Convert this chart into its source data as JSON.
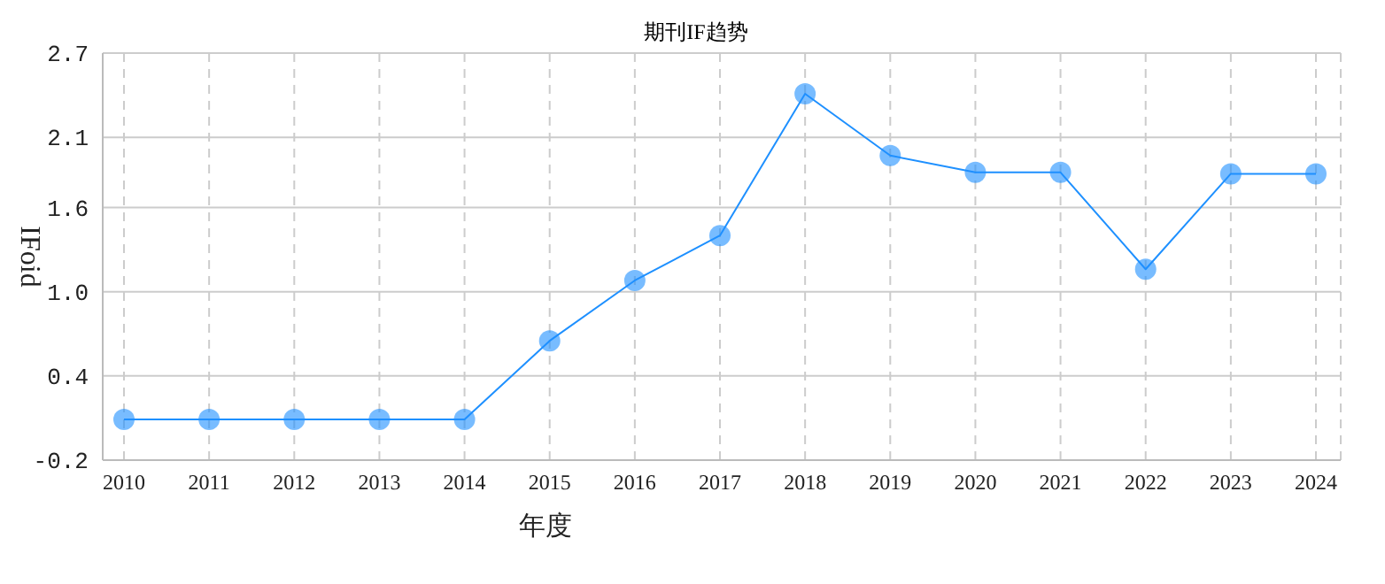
{
  "chart_data": {
    "type": "line",
    "title": "期刊IF趋势",
    "xlabel": "年度",
    "ylabel": "IFoid",
    "categories": [
      "2010",
      "2011",
      "2012",
      "2013",
      "2014",
      "2015",
      "2016",
      "2017",
      "2018",
      "2019",
      "2020",
      "2021",
      "2022",
      "2023",
      "2024"
    ],
    "series": [
      {
        "color": "#1e90ff",
        "values": [
          0.09,
          0.09,
          0.09,
          0.09,
          0.09,
          0.65,
          1.08,
          1.4,
          2.41,
          1.97,
          1.85,
          1.85,
          1.16,
          1.84,
          1.84
        ]
      }
    ],
    "ylim": [
      -0.2,
      2.7
    ],
    "yticks": [
      -0.2,
      {
        "value": 0.4,
        "label": "0.4"
      },
      {
        "value": 1.0,
        "label": "1.0"
      },
      1.6,
      2.1,
      2.7
    ],
    "grid": true,
    "marker": "circle",
    "line_style": "solid",
    "legend": false
  }
}
